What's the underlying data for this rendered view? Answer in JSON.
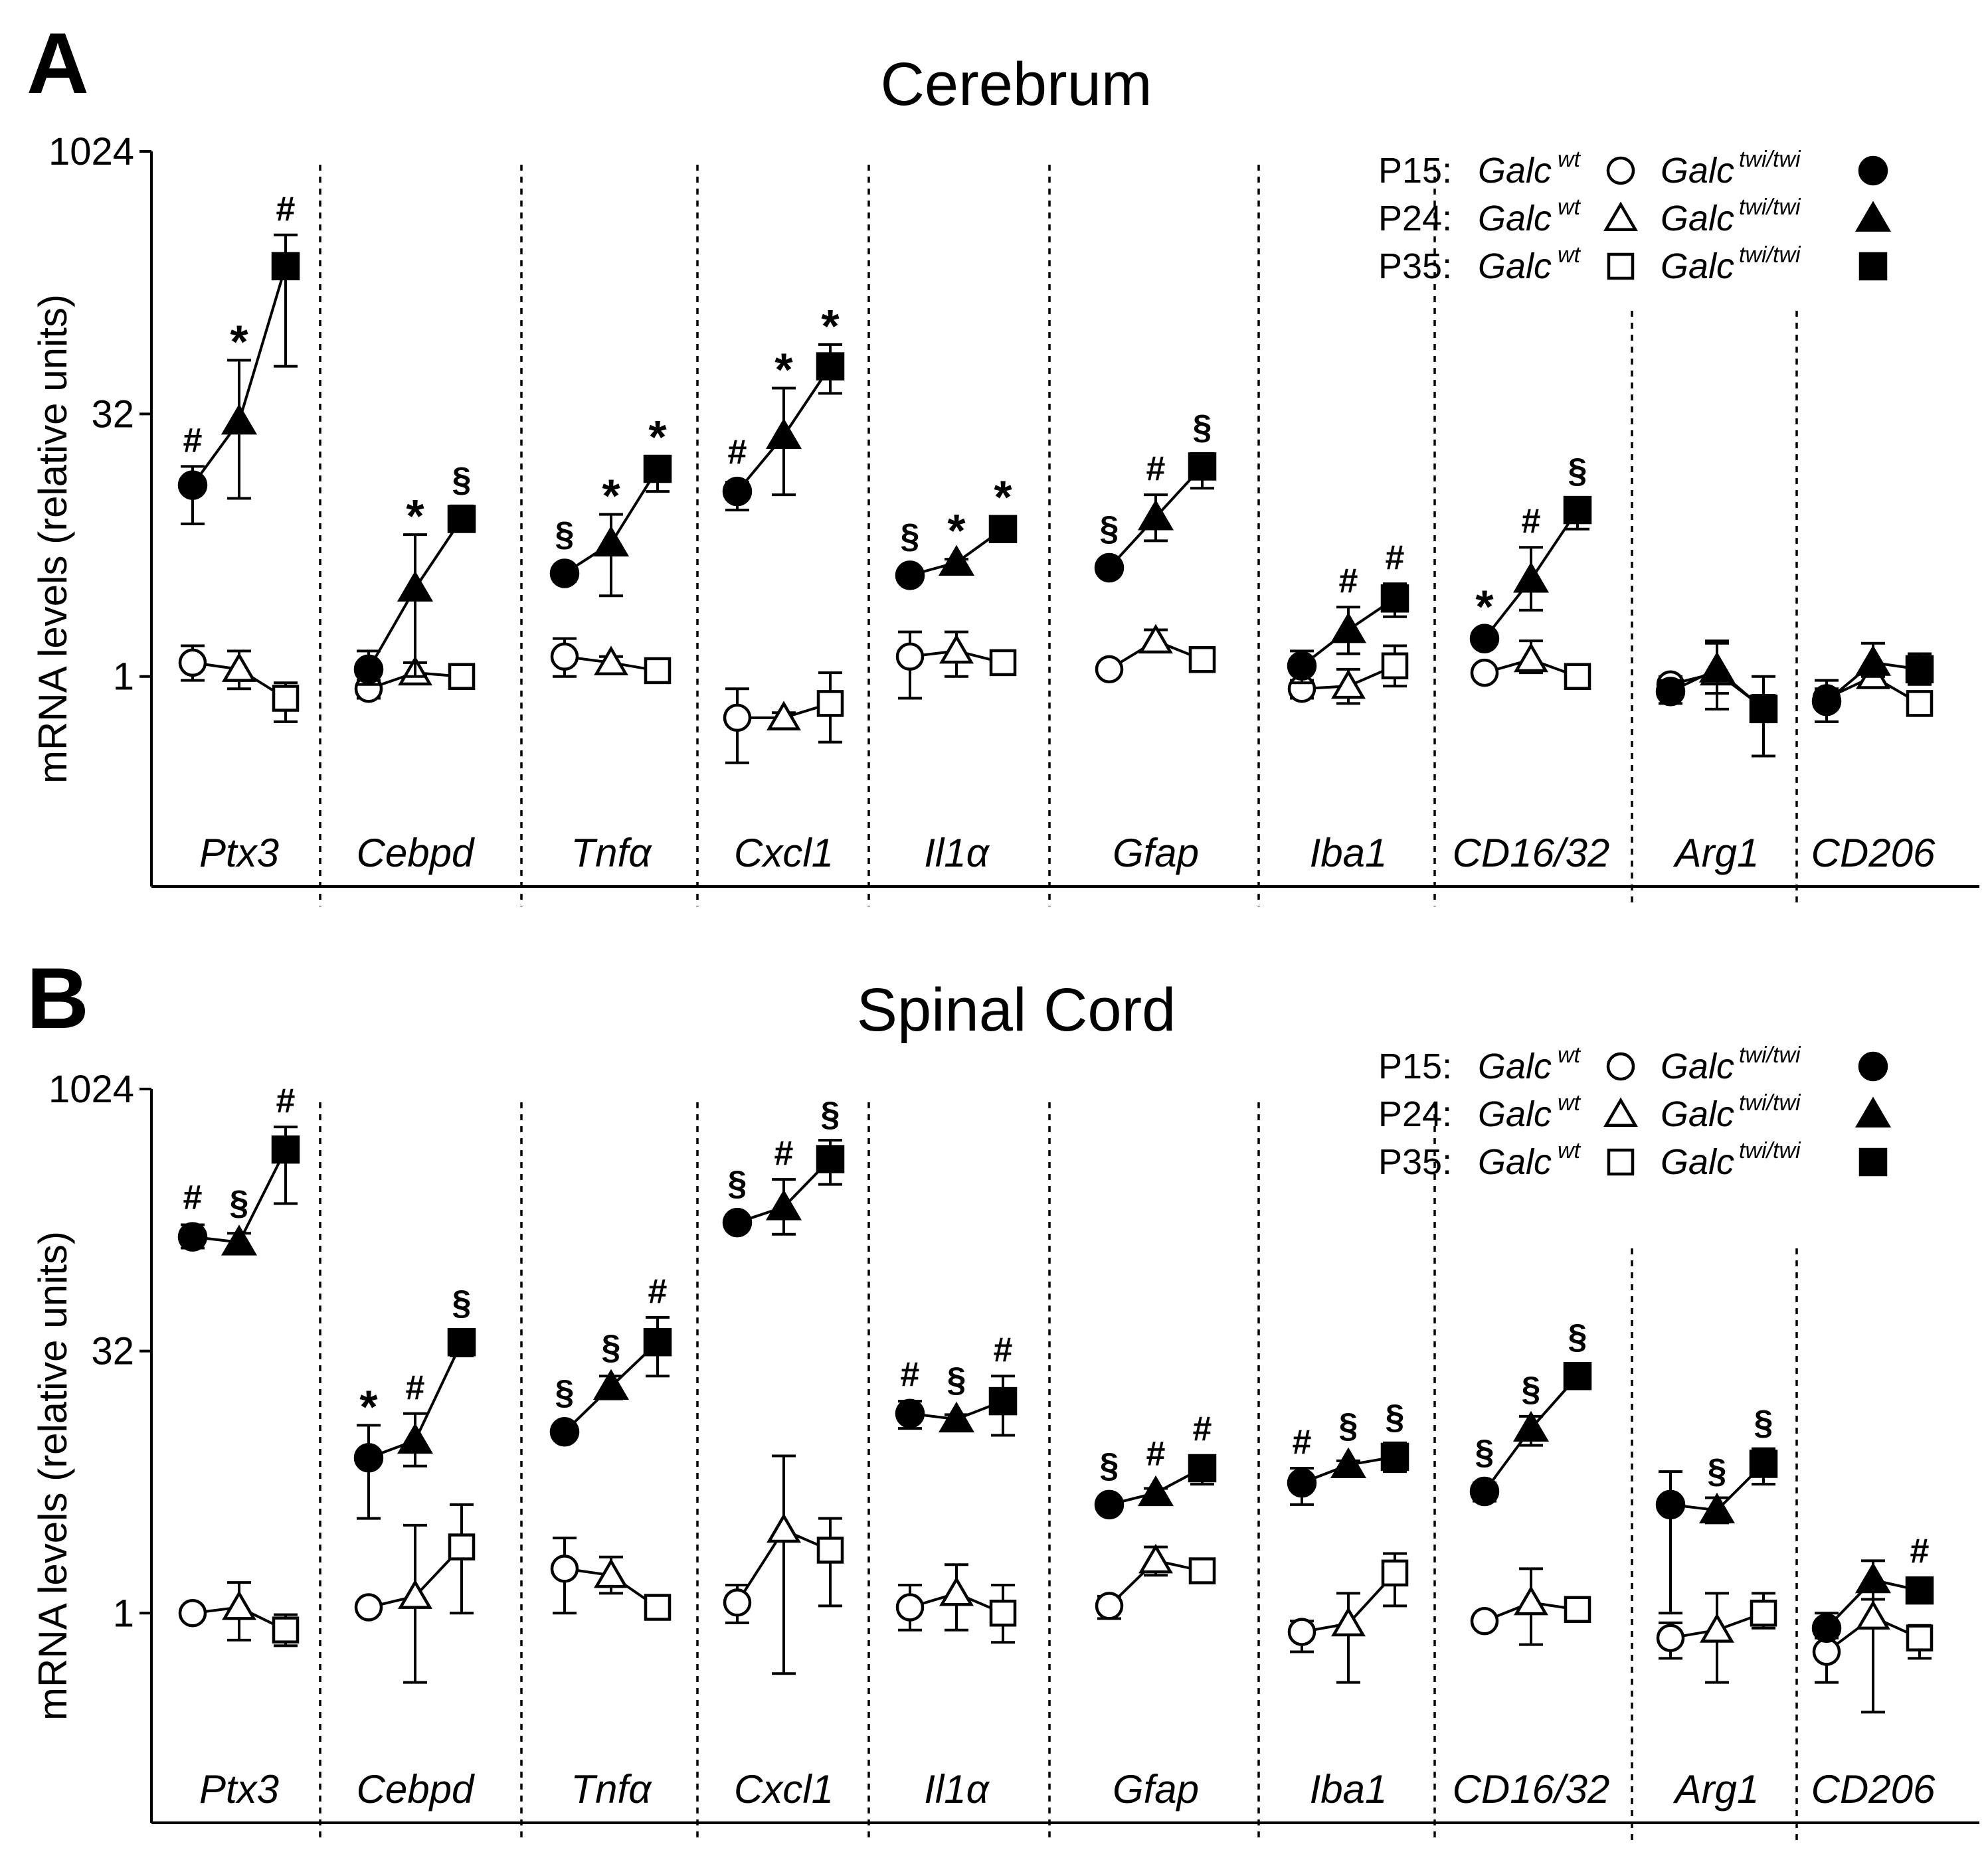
{
  "legend": {
    "wt_label": "Galc",
    "wt_sup": "wt",
    "twi_label": "Galc",
    "twi_sup": "twi/twi",
    "rows": [
      {
        "time": "P15:",
        "shape": "circle"
      },
      {
        "time": "P24:",
        "shape": "triangle"
      },
      {
        "time": "P35:",
        "shape": "square"
      }
    ]
  },
  "colors": {
    "filled": "#000000",
    "open": "#ffffff",
    "line": "#000000"
  },
  "chart_data": [
    {
      "type": "line",
      "panel_letter": "A",
      "title": "Cerebrum",
      "ylabel": "mRNA levels (relative units)",
      "yscale": "log2",
      "ylim": [
        0.0625,
        1024
      ],
      "yticks": [
        {
          "label": "1024",
          "value": 1024
        },
        {
          "label": "32",
          "value": 32
        },
        {
          "label": "1",
          "value": 1
        }
      ],
      "genes": [
        {
          "name": "Ptx3",
          "wt": [
            {
              "y": 1.2,
              "lo": 0.95,
              "hi": 1.5
            },
            {
              "y": 1.1,
              "lo": 0.85,
              "hi": 1.4
            },
            {
              "y": 0.75,
              "lo": 0.55,
              "hi": 0.92
            }
          ],
          "twi": [
            {
              "y": 12.5,
              "lo": 7.5,
              "hi": 16
            },
            {
              "y": 29,
              "lo": 10.5,
              "hi": 65
            },
            {
              "y": 225,
              "lo": 60,
              "hi": 340
            }
          ],
          "sig": [
            "#",
            "*",
            "#"
          ]
        },
        {
          "name": "Cebpd",
          "wt": [
            {
              "y": 0.85,
              "lo": 0.75,
              "hi": 0.95
            },
            {
              "y": 1.05,
              "lo": 0.92,
              "hi": 1.2
            },
            {
              "y": 1.0,
              "lo": 0.95,
              "hi": 1.05
            }
          ],
          "twi": [
            {
              "y": 1.1,
              "lo": 0.9,
              "hi": 1.4
            },
            {
              "y": 3.2,
              "lo": 1.0,
              "hi": 6.5
            },
            {
              "y": 8.0,
              "lo": 6.8,
              "hi": 9.5
            }
          ],
          "sig": [
            "",
            "*",
            "§"
          ]
        },
        {
          "name": "Tnfα",
          "wt": [
            {
              "y": 1.3,
              "lo": 1.0,
              "hi": 1.65
            },
            {
              "y": 1.2,
              "lo": 1.1,
              "hi": 1.3
            },
            {
              "y": 1.08,
              "lo": 1.0,
              "hi": 1.15
            }
          ],
          "twi": [
            {
              "y": 3.9,
              "lo": 3.5,
              "hi": 4.3
            },
            {
              "y": 5.8,
              "lo": 2.9,
              "hi": 8.5
            },
            {
              "y": 15.5,
              "lo": 11.5,
              "hi": 18
            }
          ],
          "sig": [
            "§",
            "*",
            "*"
          ]
        },
        {
          "name": "Cxcl1",
          "wt": [
            {
              "y": 0.58,
              "lo": 0.32,
              "hi": 0.85
            },
            {
              "y": 0.58,
              "lo": 0.52,
              "hi": 0.62
            },
            {
              "y": 0.7,
              "lo": 0.42,
              "hi": 1.05
            }
          ],
          "twi": [
            {
              "y": 11.5,
              "lo": 9.0,
              "hi": 13
            },
            {
              "y": 24,
              "lo": 11,
              "hi": 45
            },
            {
              "y": 60,
              "lo": 42,
              "hi": 80
            }
          ],
          "sig": [
            "#",
            "*",
            "*"
          ]
        },
        {
          "name": "Il1α",
          "wt": [
            {
              "y": 1.3,
              "lo": 0.75,
              "hi": 1.8
            },
            {
              "y": 1.4,
              "lo": 1.0,
              "hi": 1.8
            },
            {
              "y": 1.2,
              "lo": 1.1,
              "hi": 1.3
            }
          ],
          "twi": [
            {
              "y": 3.8,
              "lo": 3.5,
              "hi": 4.1
            },
            {
              "y": 4.5,
              "lo": 4.3,
              "hi": 4.7
            },
            {
              "y": 7.0,
              "lo": 6.5,
              "hi": 7.5
            }
          ],
          "sig": [
            "§",
            "*",
            "*"
          ]
        },
        {
          "name": "Gfap",
          "wt": [
            {
              "y": 1.1,
              "lo": 1.05,
              "hi": 1.15
            },
            {
              "y": 1.6,
              "lo": 1.4,
              "hi": 1.85
            },
            {
              "y": 1.25,
              "lo": 1.15,
              "hi": 1.35
            }
          ],
          "twi": [
            {
              "y": 4.2,
              "lo": 3.9,
              "hi": 4.5
            },
            {
              "y": 8.2,
              "lo": 6.0,
              "hi": 11
            },
            {
              "y": 16,
              "lo": 12,
              "hi": 19
            }
          ],
          "sig": [
            "§",
            "#",
            "§"
          ]
        },
        {
          "name": "Iba1",
          "wt": [
            {
              "y": 0.85,
              "lo": 0.75,
              "hi": 0.95
            },
            {
              "y": 0.88,
              "lo": 0.7,
              "hi": 1.1
            },
            {
              "y": 1.15,
              "lo": 0.88,
              "hi": 1.5
            }
          ],
          "twi": [
            {
              "y": 1.15,
              "lo": 0.92,
              "hi": 1.4
            },
            {
              "y": 1.85,
              "lo": 1.35,
              "hi": 2.5
            },
            {
              "y": 2.8,
              "lo": 2.2,
              "hi": 3.4
            }
          ],
          "sig": [
            "",
            "#",
            "#"
          ]
        },
        {
          "name": "CD16/32",
          "wt": [
            {
              "y": 1.05,
              "lo": 1.0,
              "hi": 1.1
            },
            {
              "y": 1.25,
              "lo": 1.05,
              "hi": 1.6
            },
            {
              "y": 1.0,
              "lo": 0.95,
              "hi": 1.05
            }
          ],
          "twi": [
            {
              "y": 1.65,
              "lo": 1.5,
              "hi": 1.8
            },
            {
              "y": 3.6,
              "lo": 2.4,
              "hi": 5.5
            },
            {
              "y": 9.0,
              "lo": 7.0,
              "hi": 10.5
            }
          ],
          "sig": [
            "*",
            "#",
            "§"
          ]
        },
        {
          "name": "Arg1",
          "wt": [
            {
              "y": 0.9,
              "lo": 0.8,
              "hi": 1.0
            },
            {
              "y": 1.05,
              "lo": 0.65,
              "hi": 1.55
            },
            {
              "y": 0.66,
              "lo": 0.55,
              "hi": 0.78
            }
          ],
          "twi": [
            {
              "y": 0.82,
              "lo": 0.7,
              "hi": 0.95
            },
            {
              "y": 1.1,
              "lo": 0.8,
              "hi": 1.6
            },
            {
              "y": 0.65,
              "lo": 0.35,
              "hi": 1.0
            }
          ],
          "sig": [
            "",
            "",
            ""
          ]
        },
        {
          "name": "CD206",
          "wt": [
            {
              "y": 0.75,
              "lo": 0.65,
              "hi": 0.85
            },
            {
              "y": 1.0,
              "lo": 0.9,
              "hi": 1.1
            },
            {
              "y": 0.7,
              "lo": 0.62,
              "hi": 0.78
            }
          ],
          "twi": [
            {
              "y": 0.72,
              "lo": 0.55,
              "hi": 0.95
            },
            {
              "y": 1.2,
              "lo": 1.0,
              "hi": 1.55
            },
            {
              "y": 1.1,
              "lo": 0.9,
              "hi": 1.35
            }
          ],
          "sig": [
            "",
            "",
            ""
          ]
        }
      ]
    },
    {
      "type": "line",
      "panel_letter": "B",
      "title": "Spinal Cord",
      "ylabel": "mRNA levels (relative units)",
      "yscale": "log2",
      "ylim": [
        0.0625,
        1024
      ],
      "yticks": [
        {
          "label": "1024",
          "value": 1024
        },
        {
          "label": "32",
          "value": 32
        },
        {
          "label": "1",
          "value": 1
        }
      ],
      "genes": [
        {
          "name": "Ptx3",
          "wt": [
            {
              "y": 1.0,
              "lo": 0.97,
              "hi": 1.03
            },
            {
              "y": 1.08,
              "lo": 0.7,
              "hi": 1.5
            },
            {
              "y": 0.8,
              "lo": 0.65,
              "hi": 0.98
            }
          ],
          "twi": [
            {
              "y": 145,
              "lo": 125,
              "hi": 170
            },
            {
              "y": 135,
              "lo": 118,
              "hi": 152
            },
            {
              "y": 460,
              "lo": 225,
              "hi": 620
            }
          ],
          "sig": [
            "#",
            "§",
            "#"
          ]
        },
        {
          "name": "Cebpd",
          "wt": [
            {
              "y": 1.08,
              "lo": 1.0,
              "hi": 1.15
            },
            {
              "y": 1.25,
              "lo": 0.4,
              "hi": 3.2
            },
            {
              "y": 2.4,
              "lo": 1.0,
              "hi": 4.2
            }
          ],
          "twi": [
            {
              "y": 7.8,
              "lo": 3.5,
              "hi": 12
            },
            {
              "y": 9.8,
              "lo": 7.0,
              "hi": 14
            },
            {
              "y": 36,
              "lo": 30,
              "hi": 40
            }
          ],
          "sig": [
            "*",
            "#",
            "§"
          ]
        },
        {
          "name": "Tnfα",
          "wt": [
            {
              "y": 1.8,
              "lo": 1.0,
              "hi": 2.7
            },
            {
              "y": 1.65,
              "lo": 1.3,
              "hi": 2.1
            },
            {
              "y": 1.08,
              "lo": 1.0,
              "hi": 1.15
            }
          ],
          "twi": [
            {
              "y": 11,
              "lo": 10,
              "hi": 12
            },
            {
              "y": 20,
              "lo": 17,
              "hi": 23
            },
            {
              "y": 36,
              "lo": 23,
              "hi": 50
            }
          ],
          "sig": [
            "§",
            "§",
            "#"
          ]
        },
        {
          "name": "Cxcl1",
          "wt": [
            {
              "y": 1.15,
              "lo": 0.88,
              "hi": 1.45
            },
            {
              "y": 3.0,
              "lo": 0.45,
              "hi": 8.0
            },
            {
              "y": 2.3,
              "lo": 1.1,
              "hi": 3.5
            }
          ],
          "twi": [
            {
              "y": 175,
              "lo": 160,
              "hi": 190
            },
            {
              "y": 215,
              "lo": 150,
              "hi": 310
            },
            {
              "y": 405,
              "lo": 290,
              "hi": 520
            }
          ],
          "sig": [
            "§",
            "#",
            "§"
          ]
        },
        {
          "name": "Il1α",
          "wt": [
            {
              "y": 1.08,
              "lo": 0.8,
              "hi": 1.45
            },
            {
              "y": 1.3,
              "lo": 0.8,
              "hi": 1.9
            },
            {
              "y": 1.0,
              "lo": 0.68,
              "hi": 1.45
            }
          ],
          "twi": [
            {
              "y": 14,
              "lo": 11.5,
              "hi": 16.5
            },
            {
              "y": 13,
              "lo": 12.2,
              "hi": 13.8
            },
            {
              "y": 16.5,
              "lo": 10.5,
              "hi": 23
            }
          ],
          "sig": [
            "#",
            "§",
            "#"
          ]
        },
        {
          "name": "Gfap",
          "wt": [
            {
              "y": 1.1,
              "lo": 0.93,
              "hi": 1.25
            },
            {
              "y": 2.0,
              "lo": 1.65,
              "hi": 2.4
            },
            {
              "y": 1.75,
              "lo": 1.6,
              "hi": 1.9
            }
          ],
          "twi": [
            {
              "y": 4.2,
              "lo": 3.9,
              "hi": 4.5
            },
            {
              "y": 4.9,
              "lo": 4.6,
              "hi": 5.2
            },
            {
              "y": 6.8,
              "lo": 5.5,
              "hi": 7.8
            }
          ],
          "sig": [
            "§",
            "#",
            "#"
          ]
        },
        {
          "name": "Iba1",
          "wt": [
            {
              "y": 0.78,
              "lo": 0.6,
              "hi": 0.9
            },
            {
              "y": 0.87,
              "lo": 0.4,
              "hi": 1.3
            },
            {
              "y": 1.7,
              "lo": 1.1,
              "hi": 2.2
            }
          ],
          "twi": [
            {
              "y": 5.6,
              "lo": 4.2,
              "hi": 6.8
            },
            {
              "y": 7.1,
              "lo": 6.7,
              "hi": 7.5
            },
            {
              "y": 7.9,
              "lo": 6.5,
              "hi": 9.5
            }
          ],
          "sig": [
            "#",
            "§",
            "§"
          ]
        },
        {
          "name": "CD16/32",
          "wt": [
            {
              "y": 0.9,
              "lo": 0.85,
              "hi": 0.95
            },
            {
              "y": 1.15,
              "lo": 0.66,
              "hi": 1.8
            },
            {
              "y": 1.05,
              "lo": 0.95,
              "hi": 1.15
            }
          ],
          "twi": [
            {
              "y": 5.0,
              "lo": 4.4,
              "hi": 5.6
            },
            {
              "y": 11.5,
              "lo": 9.2,
              "hi": 13.5
            },
            {
              "y": 23,
              "lo": 21.5,
              "hi": 24.5
            }
          ],
          "sig": [
            "§",
            "§",
            "§"
          ]
        },
        {
          "name": "Arg1",
          "wt": [
            {
              "y": 0.72,
              "lo": 0.55,
              "hi": 0.88
            },
            {
              "y": 0.8,
              "lo": 0.4,
              "hi": 1.3
            },
            {
              "y": 1.0,
              "lo": 0.82,
              "hi": 1.3
            }
          ],
          "twi": [
            {
              "y": 4.2,
              "lo": 1.0,
              "hi": 6.5
            },
            {
              "y": 3.9,
              "lo": 3.3,
              "hi": 4.6
            },
            {
              "y": 7.2,
              "lo": 5.5,
              "hi": 8.8
            }
          ],
          "sig": [
            "",
            "§",
            "§"
          ]
        },
        {
          "name": "CD206",
          "wt": [
            {
              "y": 0.6,
              "lo": 0.4,
              "hi": 0.72
            },
            {
              "y": 0.95,
              "lo": 0.27,
              "hi": 1.2
            },
            {
              "y": 0.72,
              "lo": 0.55,
              "hi": 0.85
            }
          ],
          "twi": [
            {
              "y": 0.82,
              "lo": 0.75,
              "hi": 1.0
            },
            {
              "y": 1.55,
              "lo": 1.2,
              "hi": 2.0
            },
            {
              "y": 1.35,
              "lo": 1.25,
              "hi": 1.45
            }
          ],
          "sig": [
            "",
            "",
            "#"
          ]
        }
      ]
    }
  ]
}
